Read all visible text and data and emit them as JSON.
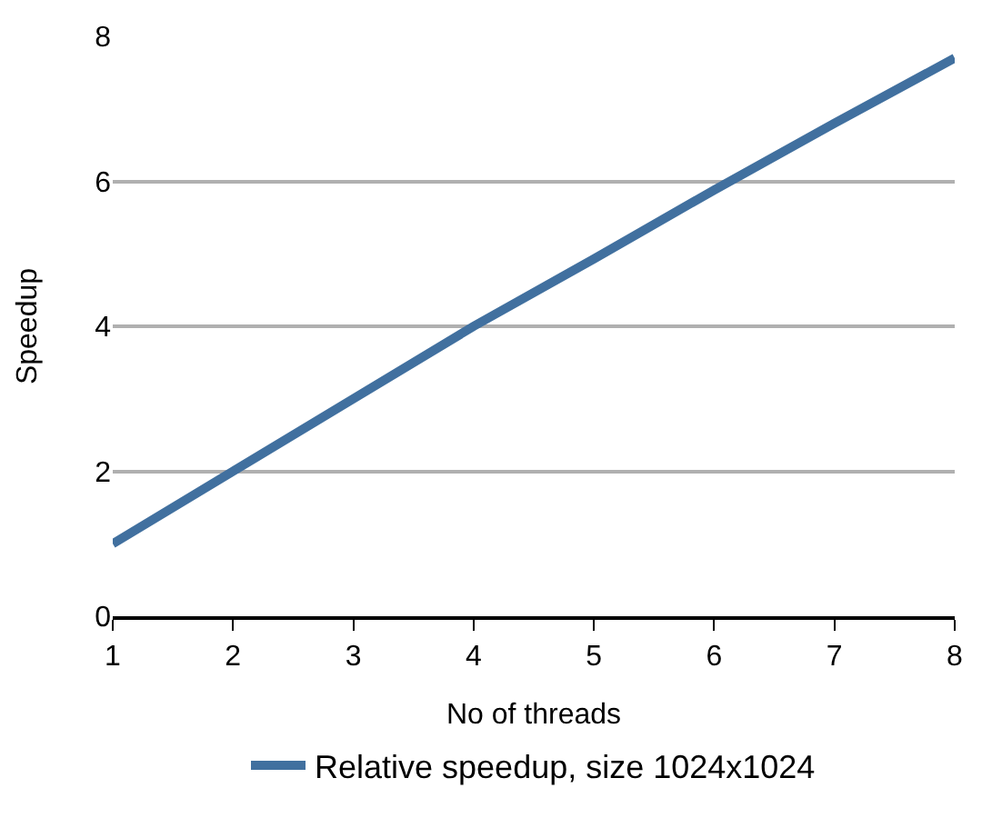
{
  "chart_data": {
    "type": "line",
    "xlabel": "No of threads",
    "ylabel": "Speedup",
    "x": [
      1,
      2,
      3,
      4,
      5,
      6,
      7,
      8
    ],
    "series": [
      {
        "name": "Relative speedup, size 1024x1024",
        "color": "#41709f",
        "values": [
          1.0,
          2.0,
          3.0,
          4.0,
          4.93,
          5.88,
          6.8,
          7.7
        ]
      }
    ],
    "xlim": [
      1,
      8
    ],
    "xticks": [
      1,
      2,
      3,
      4,
      5,
      6,
      7,
      8
    ],
    "ylim": [
      0,
      8
    ],
    "yticks": [
      0,
      2,
      4,
      6,
      8
    ],
    "grid": "y",
    "legend": "bottom",
    "marker": "none",
    "line_style": "solid"
  }
}
